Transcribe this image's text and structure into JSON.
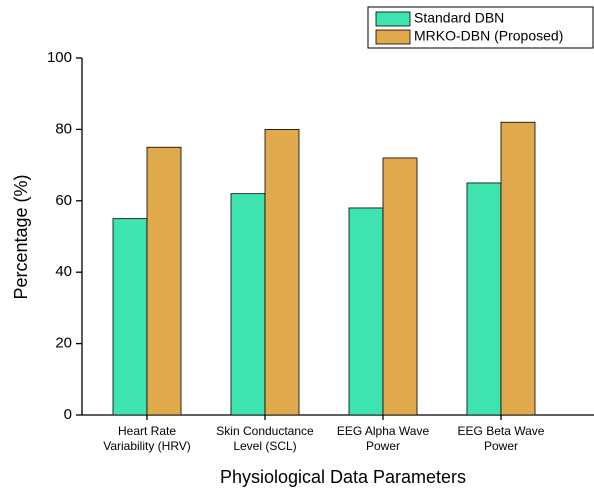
{
  "chart_data": {
    "type": "bar",
    "xlabel": "Physiological Data Parameters",
    "ylabel": "Percentage (%)",
    "categories": [
      [
        "Heart Rate",
        "Variability (HRV)"
      ],
      [
        "Skin Conductance",
        "Level (SCL)"
      ],
      [
        "EEG Alpha Wave",
        "Power"
      ],
      [
        "EEG Beta Wave",
        "Power"
      ]
    ],
    "series": [
      {
        "name": "Standard DBN",
        "color": "#3ee3b0",
        "values": [
          55,
          62,
          58,
          65
        ]
      },
      {
        "name": "MRKO-DBN (Proposed)",
        "color": "#e0aa4c",
        "values": [
          75,
          80,
          72,
          82
        ]
      }
    ],
    "ylim": [
      0,
      100
    ],
    "yticks": [
      0,
      20,
      40,
      60,
      80,
      100
    ],
    "grid": false
  }
}
